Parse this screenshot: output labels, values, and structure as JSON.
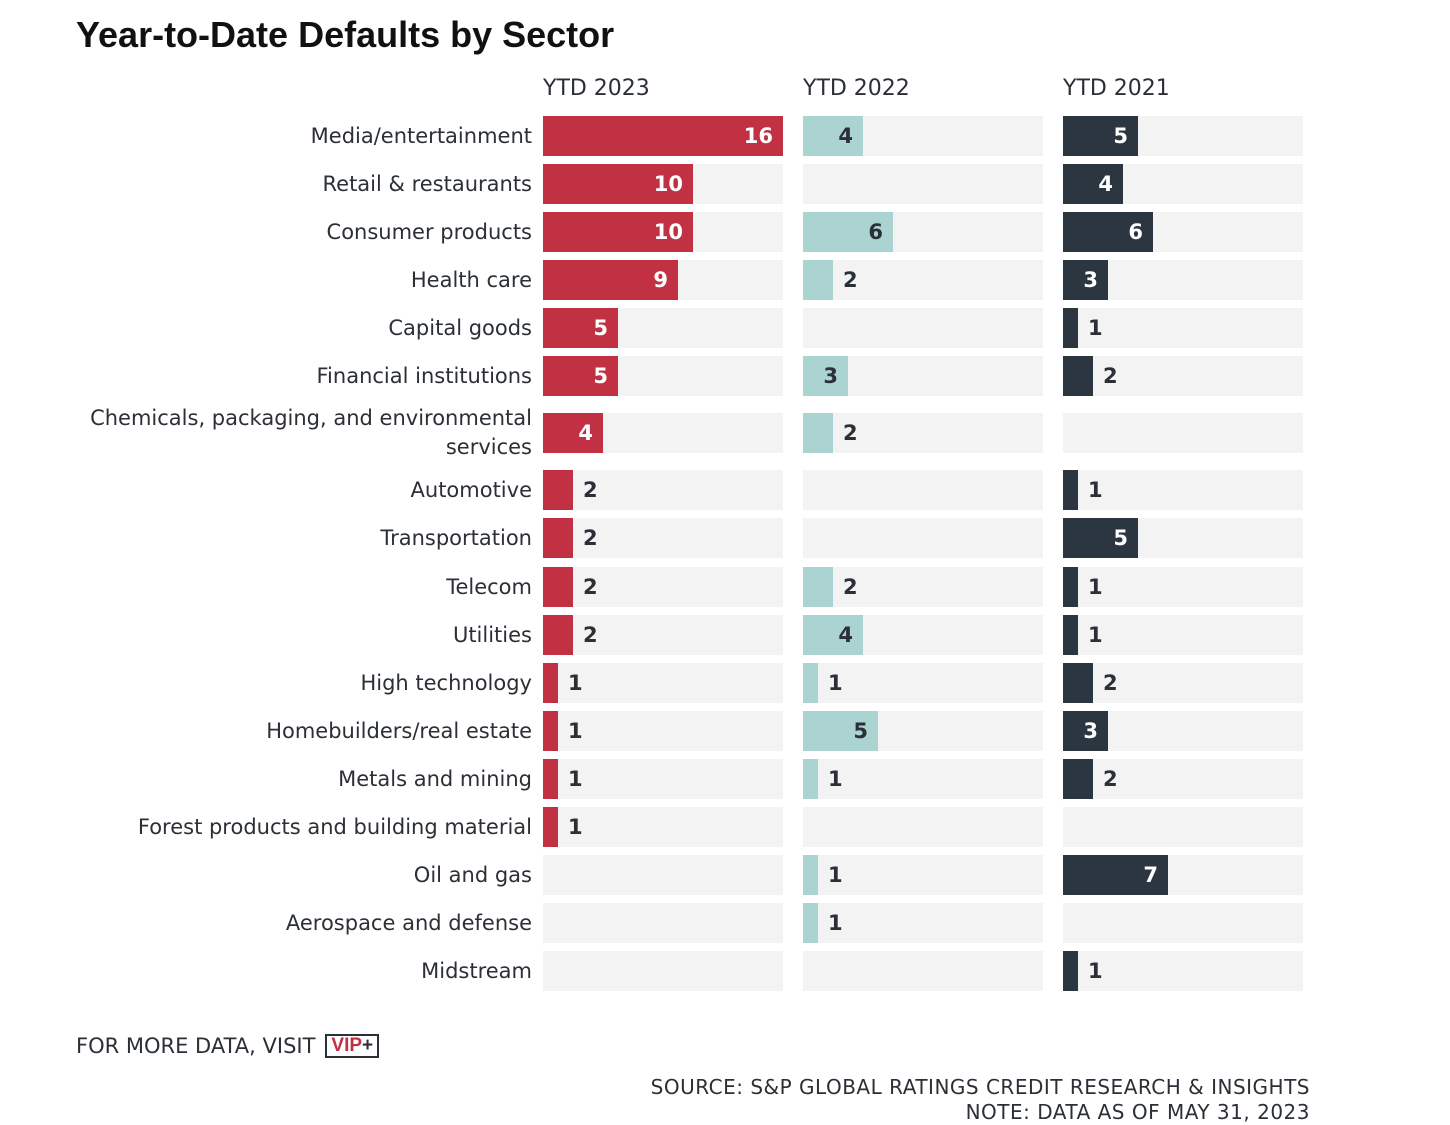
{
  "colors": {
    "ytd2023": "#c23044",
    "ytd2022": "#abd3d1",
    "ytd2021": "#2b3640",
    "track": "#f3f3f3",
    "label_on_dark": "#ffffff",
    "label_dark": "#2b2f36"
  },
  "footer": {
    "visit_text": "FOR MORE DATA, VISIT",
    "logo_text": "VIP",
    "logo_plus": "+",
    "source": "SOURCE: S&P GLOBAL RATINGS CREDIT RESEARCH & INSIGHTS",
    "note": "NOTE: DATA AS OF MAY 31, 2023"
  },
  "chart_data": {
    "type": "bar",
    "orientation": "horizontal",
    "layout": "small-multiples",
    "title": "Year-to-Date Defaults by Sector",
    "xlim": [
      0,
      16
    ],
    "grid": false,
    "categories": [
      "Media/entertainment",
      "Retail & restaurants",
      "Consumer products",
      "Health care",
      "Capital goods",
      "Financial institutions",
      "Chemicals, packaging, and environmental services",
      "Automotive",
      "Transportation",
      "Telecom",
      "Utilities",
      "High technology",
      "Homebuilders/real estate",
      "Metals and mining",
      "Forest products and building material",
      "Oil and gas",
      "Aerospace and defense",
      "Midstream"
    ],
    "series": [
      {
        "name": "YTD 2023",
        "values": [
          16,
          10,
          10,
          9,
          5,
          5,
          4,
          2,
          2,
          2,
          2,
          1,
          1,
          1,
          1,
          null,
          null,
          null
        ]
      },
      {
        "name": "YTD 2022",
        "values": [
          4,
          null,
          6,
          2,
          null,
          3,
          2,
          null,
          null,
          2,
          4,
          1,
          5,
          1,
          null,
          1,
          1,
          null
        ]
      },
      {
        "name": "YTD 2021",
        "values": [
          5,
          4,
          6,
          3,
          1,
          2,
          null,
          1,
          5,
          1,
          1,
          2,
          3,
          2,
          null,
          7,
          null,
          1
        ]
      }
    ]
  }
}
